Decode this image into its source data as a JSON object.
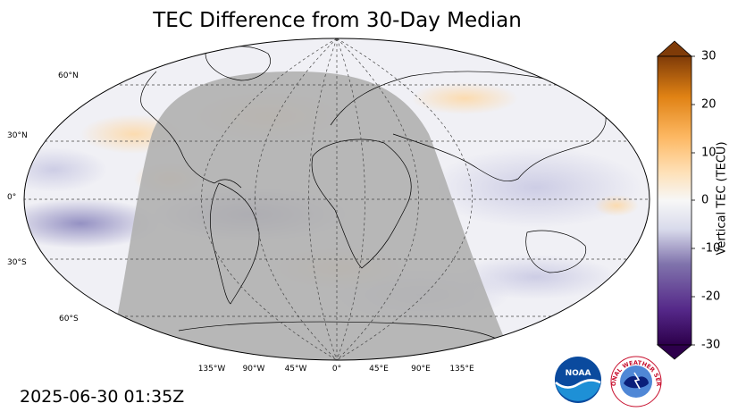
{
  "title": "TEC Difference from 30-Day Median",
  "timestamp": "2025-06-30 01:35Z",
  "latitude_labels": [
    {
      "text": "60°N",
      "lat": 60
    },
    {
      "text": "30°N",
      "lat": 30
    },
    {
      "text": "0°",
      "lat": 0
    },
    {
      "text": "30°S",
      "lat": -30
    },
    {
      "text": "60°S",
      "lat": -60
    }
  ],
  "longitude_labels": [
    {
      "text": "135°W",
      "lon": -135
    },
    {
      "text": "90°W",
      "lon": -90
    },
    {
      "text": "45°W",
      "lon": -45
    },
    {
      "text": "0°",
      "lon": 0
    },
    {
      "text": "45°E",
      "lon": 45
    },
    {
      "text": "90°E",
      "lon": 90
    },
    {
      "text": "135°E",
      "lon": 135
    }
  ],
  "colorbar": {
    "label": "Vertical TEC (TECU)",
    "min": -30,
    "max": 30,
    "ticks": [
      "30",
      "20",
      "10",
      "0",
      "-10",
      "-20",
      "-30"
    ],
    "colors": {
      "negative_end": "#2d004b",
      "neutral": "#f7f7f7",
      "positive_end": "#7f3b08"
    }
  },
  "map": {
    "night_shade_color": "#b0b0b0",
    "grid_color": "#444444"
  },
  "logos": {
    "noaa": "NOAA",
    "nws_icon": "national-weather-service-logo",
    "nws_text": "NATIONAL WEATHER SERVICE"
  }
}
